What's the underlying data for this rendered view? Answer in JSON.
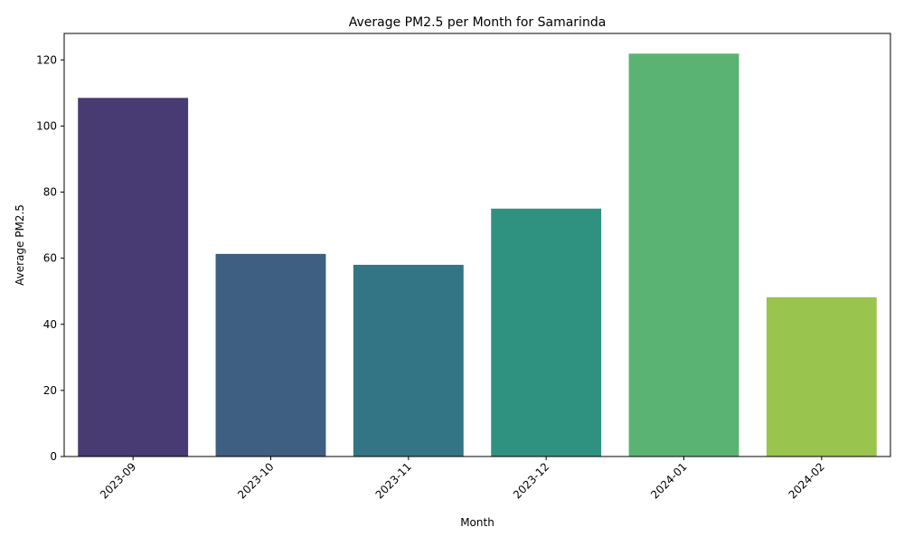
{
  "chart_data": {
    "type": "bar",
    "title": "Average PM2.5 per Month for Samarinda",
    "xlabel": "Month",
    "ylabel": "Average PM2.5",
    "categories": [
      "2023-09",
      "2023-10",
      "2023-11",
      "2023-12",
      "2024-01",
      "2024-02"
    ],
    "values": [
      108.5,
      61.3,
      58.0,
      75.0,
      121.9,
      48.2
    ],
    "colors": [
      "#483a72",
      "#3e5e82",
      "#337585",
      "#2f917f",
      "#5bb373",
      "#99c44d"
    ],
    "ylim": [
      0,
      128
    ],
    "yticks": [
      0,
      20,
      40,
      60,
      80,
      100,
      120
    ],
    "grid": false,
    "legend": "none",
    "xtick_rotation": 45
  }
}
